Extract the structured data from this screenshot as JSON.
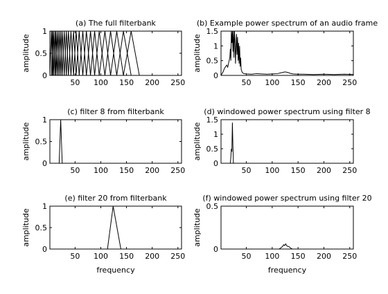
{
  "chart_data": [
    {
      "type": "line",
      "title": "(a) The full filterbank",
      "xlabel": "",
      "ylabel": "amplitude",
      "xlim": [
        1,
        257
      ],
      "ylim": [
        0,
        1
      ],
      "xticks": [
        50,
        100,
        150,
        200,
        250
      ],
      "yticks": [
        0,
        0.5,
        1
      ],
      "grid": false,
      "description_points": "26 triangular mel filters; centers/edges in frequency bins",
      "filter_edges": [
        1,
        4,
        6,
        8,
        11,
        13,
        16,
        19,
        22,
        25,
        29,
        33,
        37,
        42,
        47,
        52,
        58,
        65,
        72,
        80,
        88,
        97,
        108,
        119,
        131,
        144,
        159,
        175
      ]
    },
    {
      "type": "line",
      "title": "(b) Example power spectrum of an audio frame",
      "xlabel": "",
      "ylabel": "amplitude",
      "xlim": [
        1,
        257
      ],
      "ylim": [
        0,
        1.5
      ],
      "xticks": [
        50,
        100,
        150,
        200,
        250
      ],
      "yticks": [
        0,
        0.5,
        1,
        1.5
      ],
      "grid": false,
      "x": [
        1,
        5,
        8,
        10,
        12,
        14,
        16,
        18,
        19,
        20,
        21,
        22,
        23,
        24,
        25,
        26,
        27,
        28,
        29,
        30,
        31,
        32,
        33,
        34,
        35,
        36,
        37,
        38,
        39,
        40,
        42,
        45,
        50,
        60,
        70,
        80,
        90,
        100,
        110,
        115,
        120,
        125,
        130,
        135,
        140,
        150,
        160,
        180,
        200,
        220,
        240,
        257
      ],
      "y": [
        0.0,
        0.12,
        0.25,
        0.3,
        0.35,
        0.28,
        0.45,
        0.6,
        0.9,
        0.5,
        1.5,
        1.1,
        1.5,
        0.8,
        1.5,
        0.6,
        1.5,
        1.2,
        0.4,
        0.9,
        1.4,
        0.7,
        1.3,
        0.5,
        1.1,
        0.4,
        1.0,
        0.3,
        0.6,
        0.2,
        0.1,
        0.06,
        0.05,
        0.04,
        0.06,
        0.05,
        0.04,
        0.05,
        0.06,
        0.08,
        0.1,
        0.12,
        0.1,
        0.07,
        0.05,
        0.04,
        0.04,
        0.03,
        0.04,
        0.03,
        0.04,
        0.03
      ]
    },
    {
      "type": "line",
      "title": "(c) filter 8 from filterbank",
      "xlabel": "",
      "ylabel": "amplitude",
      "xlim": [
        1,
        257
      ],
      "ylim": [
        0,
        1
      ],
      "xticks": [
        50,
        100,
        150,
        200,
        250
      ],
      "yticks": [
        0,
        0.5,
        1
      ],
      "grid": false,
      "x": [
        19,
        22,
        25
      ],
      "y": [
        0,
        1,
        0
      ]
    },
    {
      "type": "line",
      "title": "(d) windowed power spectrum using filter 8",
      "xlabel": "",
      "ylabel": "amplitude",
      "xlim": [
        1,
        257
      ],
      "ylim": [
        0,
        1.5
      ],
      "xticks": [
        50,
        100,
        150,
        200,
        250
      ],
      "yticks": [
        0,
        0.5,
        1,
        1.5
      ],
      "grid": false,
      "x": [
        19,
        20,
        21,
        22,
        23,
        24,
        25
      ],
      "y": [
        0,
        0.2,
        0.5,
        0.4,
        1.4,
        0.6,
        0
      ]
    },
    {
      "type": "line",
      "title": "(e) filter 20 from filterbank",
      "xlabel": "frequency",
      "ylabel": "amplitude",
      "xlim": [
        1,
        257
      ],
      "ylim": [
        0,
        1
      ],
      "xticks": [
        50,
        100,
        150,
        200,
        250
      ],
      "yticks": [
        0,
        0.5,
        1
      ],
      "grid": false,
      "x": [
        113,
        124,
        139
      ],
      "y": [
        0,
        1,
        0
      ]
    },
    {
      "type": "line",
      "title": "(f) windowed power spectrum using filter 20",
      "xlabel": "frequency",
      "ylabel": "amplitude",
      "xlim": [
        1,
        257
      ],
      "ylim": [
        0,
        0.5
      ],
      "xticks": [
        50,
        100,
        150,
        200,
        250
      ],
      "yticks": [
        0,
        0.5
      ],
      "grid": false,
      "x": [
        113,
        116,
        118,
        120,
        122,
        124,
        126,
        128,
        130,
        132,
        134,
        136,
        139
      ],
      "y": [
        0,
        0.01,
        0.02,
        0.03,
        0.05,
        0.04,
        0.06,
        0.04,
        0.03,
        0.03,
        0.02,
        0.01,
        0
      ]
    }
  ]
}
